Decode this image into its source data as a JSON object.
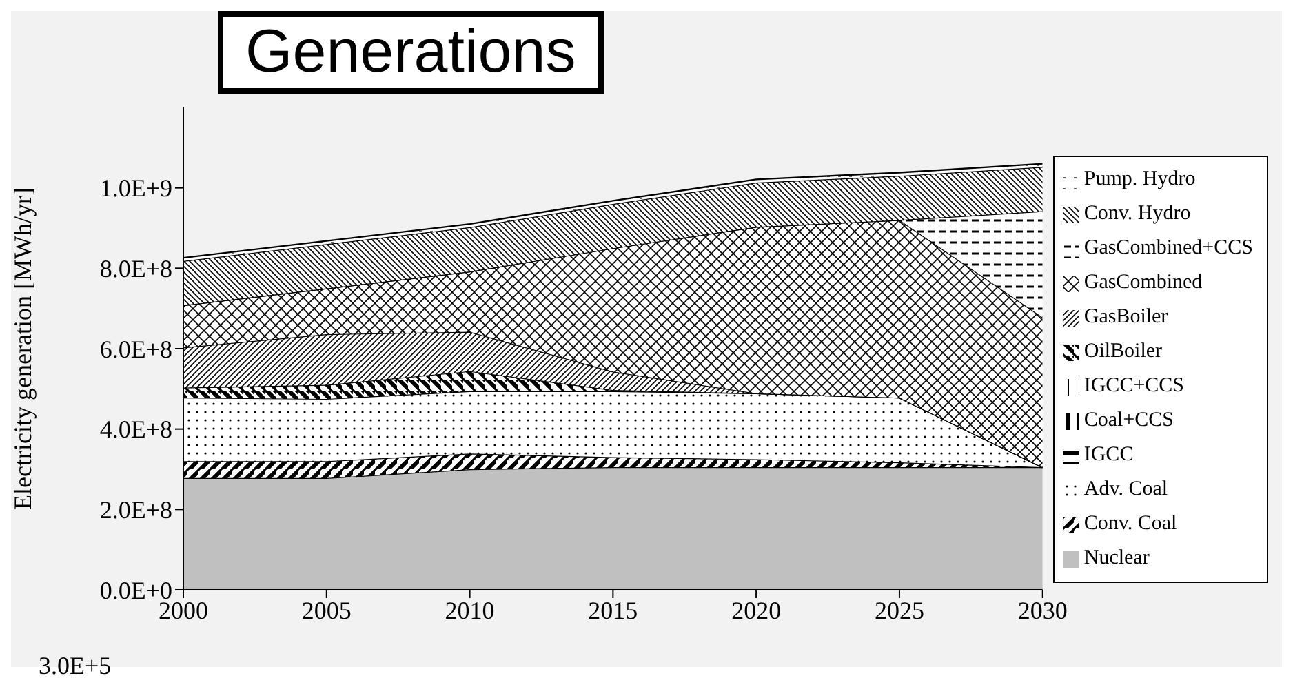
{
  "chart_data": {
    "type": "area",
    "title": "Generations",
    "ylabel": "Electricity generation [MWh/yr]",
    "stacked": true,
    "legend": "right",
    "x": [
      2000,
      2005,
      2010,
      2015,
      2020,
      2025,
      2030
    ],
    "xlim": [
      2000,
      2030
    ],
    "xticks": [
      2000,
      2005,
      2010,
      2015,
      2020,
      2025,
      2030
    ],
    "ylim": [
      0,
      1200000000
    ],
    "yticks": [
      {
        "value": 0,
        "label": "0.0E+0"
      },
      {
        "value": 200000000,
        "label": "2.0E+8"
      },
      {
        "value": 400000000,
        "label": "4.0E+8"
      },
      {
        "value": 600000000,
        "label": "6.0E+8"
      },
      {
        "value": 800000000,
        "label": "8.0E+8"
      },
      {
        "value": 1000000000,
        "label": "1.0E+9"
      }
    ],
    "annotations": [
      "3.0E+5"
    ],
    "series": [
      {
        "name": "Nuclear",
        "color": "#c0c0c0",
        "values": [
          278000000,
          278000000,
          300000000,
          305000000,
          305000000,
          305000000,
          305000000
        ]
      },
      {
        "name": "Conv. Coal",
        "color": "#000000",
        "values": [
          42000000,
          42000000,
          39000000,
          25000000,
          20000000,
          12000000,
          0
        ]
      },
      {
        "name": "Adv. Coal",
        "color": "#000000",
        "values": [
          158000000,
          155000000,
          155000000,
          164000000,
          164000000,
          161000000,
          0
        ]
      },
      {
        "name": "IGCC",
        "color": "#000000",
        "values": [
          null,
          null,
          null,
          null,
          null,
          null,
          null
        ]
      },
      {
        "name": "Coal+CCS",
        "color": "#000000",
        "values": [
          null,
          null,
          null,
          null,
          null,
          null,
          null
        ]
      },
      {
        "name": "IGCC+CCS",
        "color": "#000000",
        "values": [
          null,
          null,
          null,
          null,
          null,
          null,
          null
        ]
      },
      {
        "name": "OilBoiler",
        "color": "#000000",
        "values": [
          25000000,
          35000000,
          50000000,
          3000000,
          0,
          0,
          0
        ]
      },
      {
        "name": "GasBoiler",
        "color": "#000000",
        "values": [
          100000000,
          126000000,
          98000000,
          46000000,
          0,
          0,
          0
        ]
      },
      {
        "name": "GasCombined",
        "color": "#000000",
        "values": [
          105000000,
          114000000,
          150000000,
          307000000,
          414000000,
          442000000,
          373000000
        ]
      },
      {
        "name": "GasCombined+CCS",
        "color": "#000000",
        "values": [
          0,
          0,
          0,
          0,
          0,
          0,
          264000000
        ]
      },
      {
        "name": "Conv. Hydro",
        "color": "#000000",
        "values": [
          110000000,
          110000000,
          110000000,
          110000000,
          110000000,
          110000000,
          110000000
        ]
      },
      {
        "name": "Pump. Hydro",
        "color": "#000000",
        "values": [
          8000000,
          8000000,
          8000000,
          8000000,
          8000000,
          8000000,
          8000000
        ]
      }
    ]
  }
}
